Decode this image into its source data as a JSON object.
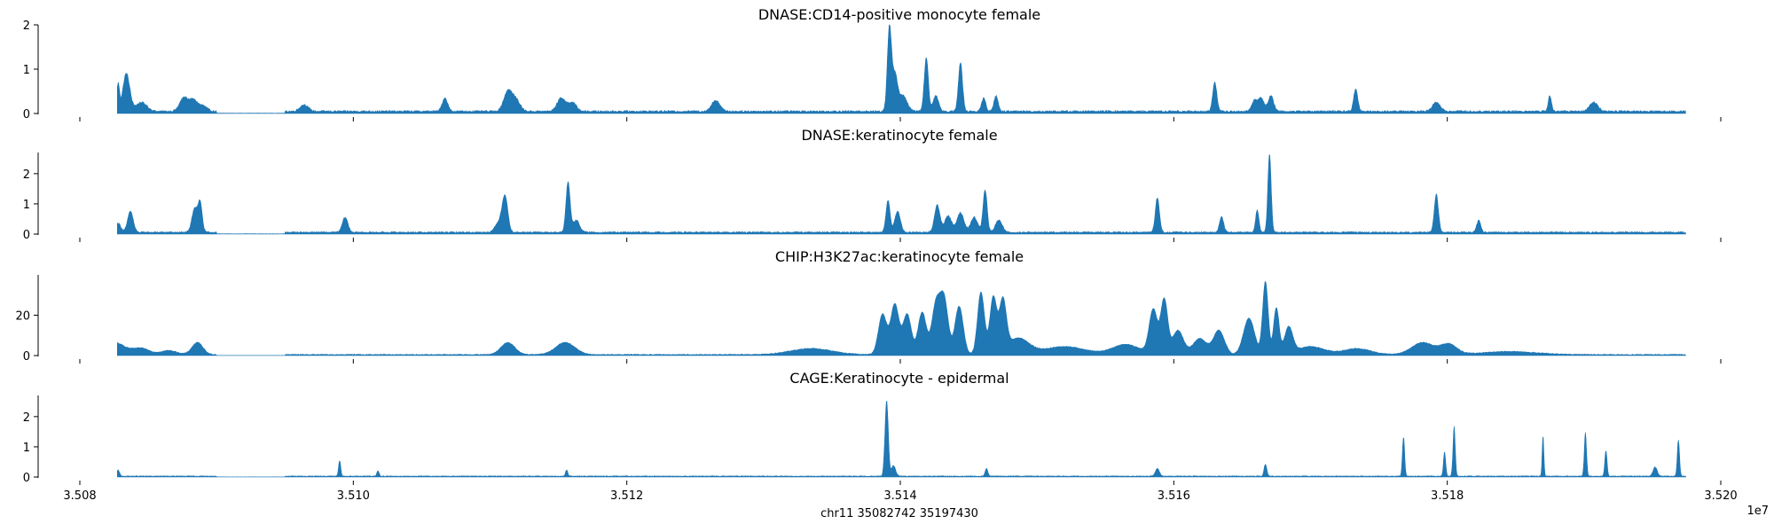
{
  "chart_data": {
    "type": "area",
    "color": "#1f77b4",
    "x_axis": {
      "label": "chr11 35082742 35197430",
      "ticks": [
        3.508,
        3.51,
        3.512,
        3.514,
        3.516,
        3.518,
        3.52
      ],
      "tick_labels": [
        "3.508",
        "3.510",
        "3.512",
        "3.514",
        "3.516",
        "3.518",
        "3.520"
      ],
      "offset_label": "1e7",
      "range": [
        35080000,
        35200000
      ],
      "data_range": [
        35082742,
        35197430
      ]
    },
    "tracks": [
      {
        "title": "DNASE:CD14-positive monocyte female",
        "ylim": [
          0,
          2
        ],
        "yticks": [
          0,
          1,
          2
        ],
        "baseline": 0.05,
        "peaks": [
          {
            "x": 35082800,
            "h": 0.6,
            "w": 100
          },
          {
            "x": 35083400,
            "h": 0.85,
            "w": 250
          },
          {
            "x": 35084500,
            "h": 0.2,
            "w": 400
          },
          {
            "x": 35087600,
            "h": 0.3,
            "w": 300
          },
          {
            "x": 35088300,
            "h": 0.25,
            "w": 300
          },
          {
            "x": 35089000,
            "h": 0.12,
            "w": 300
          },
          {
            "x": 35096400,
            "h": 0.15,
            "w": 300
          },
          {
            "x": 35106700,
            "h": 0.3,
            "w": 200
          },
          {
            "x": 35111300,
            "h": 0.45,
            "w": 300
          },
          {
            "x": 35111900,
            "h": 0.25,
            "w": 300
          },
          {
            "x": 35115200,
            "h": 0.3,
            "w": 300
          },
          {
            "x": 35116000,
            "h": 0.2,
            "w": 300
          },
          {
            "x": 35126500,
            "h": 0.25,
            "w": 300
          },
          {
            "x": 35139200,
            "h": 1.85,
            "w": 150
          },
          {
            "x": 35139600,
            "h": 0.8,
            "w": 200
          },
          {
            "x": 35140200,
            "h": 0.35,
            "w": 300
          },
          {
            "x": 35141900,
            "h": 1.2,
            "w": 150
          },
          {
            "x": 35142600,
            "h": 0.35,
            "w": 200
          },
          {
            "x": 35144400,
            "h": 1.1,
            "w": 150
          },
          {
            "x": 35146100,
            "h": 0.3,
            "w": 150
          },
          {
            "x": 35147000,
            "h": 0.35,
            "w": 150
          },
          {
            "x": 35163000,
            "h": 0.65,
            "w": 150
          },
          {
            "x": 35165900,
            "h": 0.25,
            "w": 200
          },
          {
            "x": 35166400,
            "h": 0.3,
            "w": 200
          },
          {
            "x": 35167100,
            "h": 0.35,
            "w": 200
          },
          {
            "x": 35173300,
            "h": 0.5,
            "w": 150
          },
          {
            "x": 35179200,
            "h": 0.2,
            "w": 300
          },
          {
            "x": 35187500,
            "h": 0.35,
            "w": 120
          },
          {
            "x": 35190700,
            "h": 0.2,
            "w": 300
          }
        ]
      },
      {
        "title": "DNASE:keratinocyte female",
        "ylim": [
          0,
          2.7
        ],
        "yticks": [
          0,
          1,
          2
        ],
        "baseline": 0.06,
        "peaks": [
          {
            "x": 35082800,
            "h": 0.3,
            "w": 200
          },
          {
            "x": 35083700,
            "h": 0.7,
            "w": 200
          },
          {
            "x": 35088400,
            "h": 0.8,
            "w": 200
          },
          {
            "x": 35088800,
            "h": 0.95,
            "w": 150
          },
          {
            "x": 35099400,
            "h": 0.5,
            "w": 200
          },
          {
            "x": 35111100,
            "h": 1.1,
            "w": 200
          },
          {
            "x": 35110700,
            "h": 0.35,
            "w": 300
          },
          {
            "x": 35115700,
            "h": 1.65,
            "w": 150
          },
          {
            "x": 35116300,
            "h": 0.4,
            "w": 250
          },
          {
            "x": 35139100,
            "h": 1.05,
            "w": 150
          },
          {
            "x": 35139800,
            "h": 0.7,
            "w": 200
          },
          {
            "x": 35142700,
            "h": 0.9,
            "w": 200
          },
          {
            "x": 35143500,
            "h": 0.55,
            "w": 250
          },
          {
            "x": 35144400,
            "h": 0.65,
            "w": 250
          },
          {
            "x": 35145400,
            "h": 0.5,
            "w": 250
          },
          {
            "x": 35146200,
            "h": 1.4,
            "w": 150
          },
          {
            "x": 35147200,
            "h": 0.4,
            "w": 250
          },
          {
            "x": 35158800,
            "h": 1.15,
            "w": 150
          },
          {
            "x": 35163500,
            "h": 0.5,
            "w": 150
          },
          {
            "x": 35166100,
            "h": 0.75,
            "w": 120
          },
          {
            "x": 35167000,
            "h": 2.6,
            "w": 120
          },
          {
            "x": 35179200,
            "h": 1.25,
            "w": 150
          },
          {
            "x": 35182300,
            "h": 0.4,
            "w": 150
          }
        ]
      },
      {
        "title": "CHIP:H3K27ac:keratinocyte female",
        "ylim": [
          0,
          40
        ],
        "yticks": [
          0,
          20
        ],
        "baseline": 0.5,
        "peaks": [
          {
            "x": 35082500,
            "h": 6,
            "w": 800
          },
          {
            "x": 35084500,
            "h": 3,
            "w": 600
          },
          {
            "x": 35086500,
            "h": 2,
            "w": 600
          },
          {
            "x": 35088600,
            "h": 6,
            "w": 400
          },
          {
            "x": 35111300,
            "h": 6,
            "w": 500
          },
          {
            "x": 35115500,
            "h": 6,
            "w": 700
          },
          {
            "x": 35133500,
            "h": 3,
            "w": 1500
          },
          {
            "x": 35138700,
            "h": 20,
            "w": 300
          },
          {
            "x": 35139600,
            "h": 25,
            "w": 300
          },
          {
            "x": 35140500,
            "h": 20,
            "w": 300
          },
          {
            "x": 35141600,
            "h": 21,
            "w": 300
          },
          {
            "x": 35142600,
            "h": 24,
            "w": 300
          },
          {
            "x": 35143200,
            "h": 27,
            "w": 300
          },
          {
            "x": 35144300,
            "h": 24,
            "w": 300
          },
          {
            "x": 35145900,
            "h": 31,
            "w": 250
          },
          {
            "x": 35146800,
            "h": 28,
            "w": 250
          },
          {
            "x": 35147500,
            "h": 25,
            "w": 250
          },
          {
            "x": 35148600,
            "h": 8,
            "w": 800
          },
          {
            "x": 35152000,
            "h": 4,
            "w": 1500
          },
          {
            "x": 35156500,
            "h": 5,
            "w": 1000
          },
          {
            "x": 35158500,
            "h": 22,
            "w": 300
          },
          {
            "x": 35159300,
            "h": 27,
            "w": 250
          },
          {
            "x": 35160300,
            "h": 12,
            "w": 400
          },
          {
            "x": 35161900,
            "h": 8,
            "w": 500
          },
          {
            "x": 35163300,
            "h": 12,
            "w": 400
          },
          {
            "x": 35165500,
            "h": 18,
            "w": 400
          },
          {
            "x": 35166700,
            "h": 36,
            "w": 200
          },
          {
            "x": 35167500,
            "h": 23,
            "w": 200
          },
          {
            "x": 35168400,
            "h": 13,
            "w": 300
          },
          {
            "x": 35170000,
            "h": 4,
            "w": 1000
          },
          {
            "x": 35173400,
            "h": 3,
            "w": 1000
          },
          {
            "x": 35178200,
            "h": 6,
            "w": 800
          },
          {
            "x": 35180100,
            "h": 5,
            "w": 600
          },
          {
            "x": 35184500,
            "h": 1.5,
            "w": 2000
          }
        ]
      },
      {
        "title": "CAGE:Keratinocyte - epidermal",
        "ylim": [
          0,
          2.7
        ],
        "yticks": [
          0,
          1,
          2
        ],
        "baseline": 0.03,
        "peaks": [
          {
            "x": 35082800,
            "h": 0.2,
            "w": 100
          },
          {
            "x": 35099000,
            "h": 0.5,
            "w": 80
          },
          {
            "x": 35101800,
            "h": 0.18,
            "w": 80
          },
          {
            "x": 35115600,
            "h": 0.2,
            "w": 80
          },
          {
            "x": 35139000,
            "h": 2.5,
            "w": 120
          },
          {
            "x": 35139500,
            "h": 0.35,
            "w": 150
          },
          {
            "x": 35146300,
            "h": 0.25,
            "w": 100
          },
          {
            "x": 35158800,
            "h": 0.25,
            "w": 150
          },
          {
            "x": 35166700,
            "h": 0.4,
            "w": 100
          },
          {
            "x": 35176800,
            "h": 1.3,
            "w": 80
          },
          {
            "x": 35179800,
            "h": 0.8,
            "w": 80
          },
          {
            "x": 35180500,
            "h": 1.65,
            "w": 80
          },
          {
            "x": 35187000,
            "h": 1.35,
            "w": 60
          },
          {
            "x": 35190100,
            "h": 1.45,
            "w": 80
          },
          {
            "x": 35191600,
            "h": 0.85,
            "w": 80
          },
          {
            "x": 35195200,
            "h": 0.3,
            "w": 150
          },
          {
            "x": 35196900,
            "h": 1.2,
            "w": 80
          }
        ]
      }
    ]
  }
}
